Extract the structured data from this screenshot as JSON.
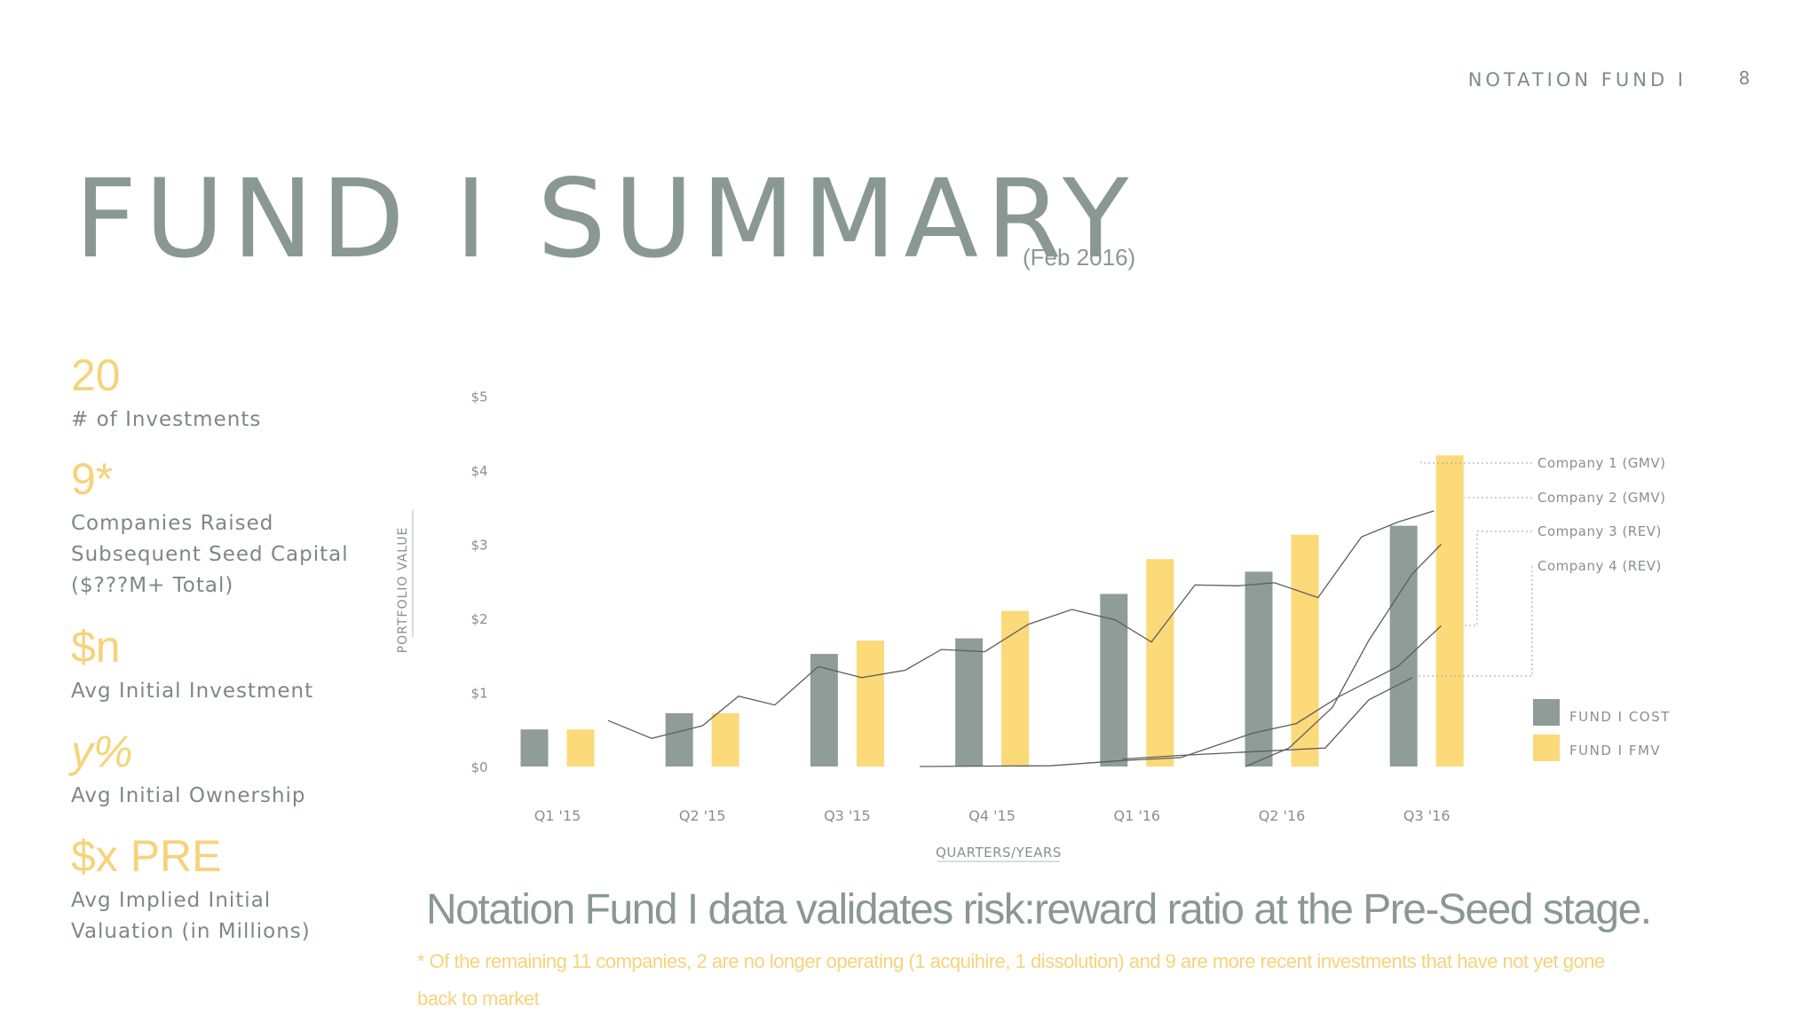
{
  "header": {
    "fund_label": "NOTATION FUND I",
    "page_number": "8"
  },
  "title": "FUND I SUMMARY",
  "subtitle": "(Feb 2016)",
  "stats": [
    {
      "value": "20",
      "label": "# of Investments"
    },
    {
      "value": "9*",
      "label": "Companies Raised\nSubsequent Seed Capital\n($???M+ Total)"
    },
    {
      "value": "$n",
      "label": "Avg Initial Investment"
    },
    {
      "value": "y%",
      "label": "Avg Initial Ownership"
    },
    {
      "value": "$x PRE",
      "label": "Avg Implied Initial\nValuation (in Millions)"
    }
  ],
  "headline": "Notation Fund I data validates risk:reward ratio at the Pre-Seed stage.",
  "footnote": "* Of the remaining 11 companies, 2 are no longer operating (1 acquihire, 1 dissolution) and 9 are more recent investments that have not yet gone back to market",
  "colors": {
    "cost": "#8f9c98",
    "fmv": "#fcd979",
    "line": "#5a5e5d",
    "axis_text": "#8a8f8d"
  },
  "chart_data": {
    "type": "bar",
    "categories": [
      "Q1 '15",
      "Q2 '15",
      "Q3 '15",
      "Q4 '15",
      "Q1 '16",
      "Q2 '16",
      "Q3 '16"
    ],
    "ylabel": "PORTFOLIO VALUE",
    "xlabel": "QUARTERS/YEARS",
    "ylim": [
      0,
      5
    ],
    "yticks": [
      "$0",
      "$1",
      "$2",
      "$3",
      "$4",
      "$5"
    ],
    "grid": false,
    "legend_position": "right",
    "series": [
      {
        "name": "FUND I COST",
        "values": [
          0.5,
          0.72,
          1.52,
          1.73,
          2.33,
          2.63,
          3.25
        ]
      },
      {
        "name": "FUND I FMV",
        "values": [
          0.5,
          0.72,
          1.7,
          2.1,
          2.8,
          3.13,
          4.2
        ]
      }
    ],
    "overlay_lines": [
      {
        "name": "Company 1 (GMV)",
        "x": [
          0.35,
          0.65,
          1.0,
          1.25,
          1.5,
          1.8,
          2.1,
          2.4,
          2.65,
          2.95,
          3.25,
          3.55,
          3.85,
          4.1,
          4.4,
          4.7,
          4.95,
          5.25,
          5.55,
          5.8,
          6.05
        ],
        "y": [
          0.62,
          0.38,
          0.55,
          0.95,
          0.83,
          1.35,
          1.2,
          1.3,
          1.58,
          1.55,
          1.92,
          2.12,
          1.98,
          1.68,
          2.45,
          2.44,
          2.48,
          2.28,
          3.1,
          3.3,
          3.45
        ]
      },
      {
        "name": "Company 2 (GMV)",
        "x": [
          4.75,
          5.05,
          5.35,
          5.6,
          5.9,
          6.1
        ],
        "y": [
          0.0,
          0.25,
          0.8,
          1.7,
          2.6,
          3.0
        ]
      },
      {
        "name": "Company 3 (REV)",
        "x": [
          2.5,
          3.4,
          3.9,
          4.3,
          4.8,
          5.1,
          5.4,
          5.8,
          6.1
        ],
        "y": [
          0.0,
          0.01,
          0.08,
          0.12,
          0.45,
          0.58,
          0.95,
          1.35,
          1.9
        ]
      },
      {
        "name": "Company 4 (REV)",
        "x": [
          3.9,
          4.3,
          4.8,
          5.3,
          5.6,
          5.9
        ],
        "y": [
          0.1,
          0.15,
          0.2,
          0.25,
          0.9,
          1.2
        ]
      }
    ],
    "annotations": [
      "Company 1 (GMV)",
      "Company 2 (GMV)",
      "Company 3 (REV)",
      "Company 4 (REV)"
    ]
  }
}
